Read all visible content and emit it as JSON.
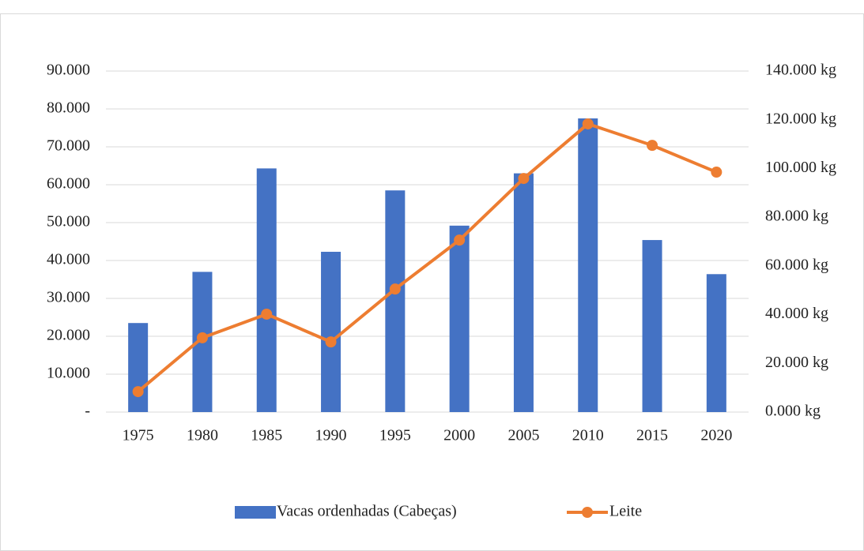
{
  "chart_data": {
    "type": "bar_line",
    "categories": [
      "1975",
      "1980",
      "1985",
      "1990",
      "1995",
      "2000",
      "2005",
      "2010",
      "2015",
      "2020"
    ],
    "series": [
      {
        "name": "Vacas ordenhadas (Cabeças)",
        "type": "bar",
        "color": "#4472c4",
        "axis": "y",
        "values": [
          23500,
          37000,
          64300,
          42300,
          58500,
          49200,
          63000,
          77500,
          45400,
          36400
        ]
      },
      {
        "name": "Leite",
        "type": "line",
        "color": "#ed7d31",
        "axis": "y2",
        "values": [
          8400,
          30500,
          40200,
          28800,
          50500,
          70600,
          95900,
          118300,
          109500,
          98500
        ]
      }
    ],
    "ylim": [
      0,
      90000
    ],
    "yticks": [
      {
        "value": 0,
        "label": "-"
      },
      {
        "value": 10000,
        "label": "10.000"
      },
      {
        "value": 20000,
        "label": "20.000"
      },
      {
        "value": 30000,
        "label": "30.000"
      },
      {
        "value": 40000,
        "label": "40.000"
      },
      {
        "value": 50000,
        "label": "50.000"
      },
      {
        "value": 60000,
        "label": "60.000"
      },
      {
        "value": 70000,
        "label": "70.000"
      },
      {
        "value": 80000,
        "label": "80.000"
      },
      {
        "value": 90000,
        "label": "90.000"
      }
    ],
    "y2lim": [
      0,
      140000
    ],
    "y2ticks": [
      {
        "value": 0,
        "label": "0.000 kg"
      },
      {
        "value": 20000,
        "label": "20.000 kg"
      },
      {
        "value": 40000,
        "label": "40.000 kg"
      },
      {
        "value": 60000,
        "label": "60.000 kg"
      },
      {
        "value": 80000,
        "label": "80.000 kg"
      },
      {
        "value": 100000,
        "label": "100.000 kg"
      },
      {
        "value": 120000,
        "label": "120.000 kg"
      },
      {
        "value": 140000,
        "label": "140.000 kg"
      }
    ],
    "grid": true,
    "legend": "bottom"
  }
}
